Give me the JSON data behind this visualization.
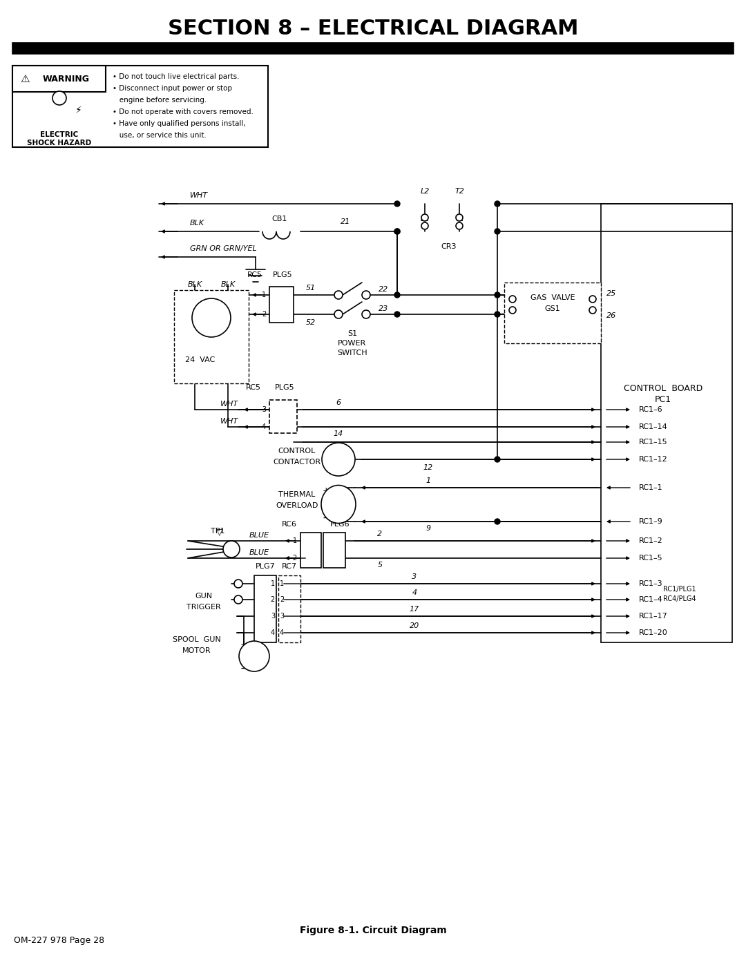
{
  "title": "SECTION 8 – ELECTRICAL DIAGRAM",
  "figsize": [
    10.8,
    13.97
  ],
  "dpi": 100,
  "bg_color": "#ffffff",
  "footer_left": "OM-227 978 Page 28",
  "footer_center": "Figure 8-1. Circuit Diagram",
  "warning_bullets": [
    "• Do not touch live electrical parts.",
    "• Disconnect input power or stop",
    "   engine before servicing.",
    "• Do not operate with covers removed.",
    "• Have only qualified persons install,",
    "   use, or service this unit."
  ]
}
